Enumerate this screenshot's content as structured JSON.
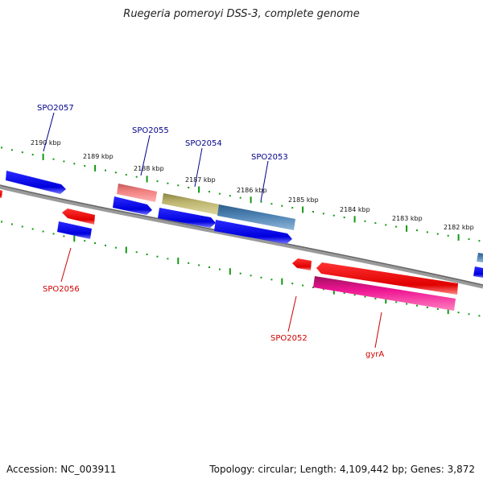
{
  "title": "Ruegeria pomeroyi DSS-3, complete genome",
  "footer": {
    "accession": "Accession: NC_003911",
    "summary": "Topology: circular; Length: 4,109,442 bp; Genes: 3,872"
  },
  "ticks": [
    "2190 kbp",
    "2189 kbp",
    "2188 kbp",
    "2187 kbp",
    "2186 kbp",
    "2185 kbp",
    "2184 kbp",
    "2183 kbp",
    "2182 kbp"
  ],
  "genes_top": [
    "SPO2057",
    "SPO2055",
    "SPO2054",
    "SPO2053"
  ],
  "genes_bottom": [
    "SPO2056",
    "SPO2052",
    "gyrA"
  ],
  "colors": {
    "forward": "#0000ee",
    "reverse": "#ee0000",
    "backbone": "#777777",
    "ticks": "#119911",
    "label_top": "#00008b",
    "label_bottom": "#cc0000",
    "pink": "#f08080",
    "olive": "#b8b06a",
    "steel": "#4a7fb0",
    "magenta": "#ee1493"
  }
}
